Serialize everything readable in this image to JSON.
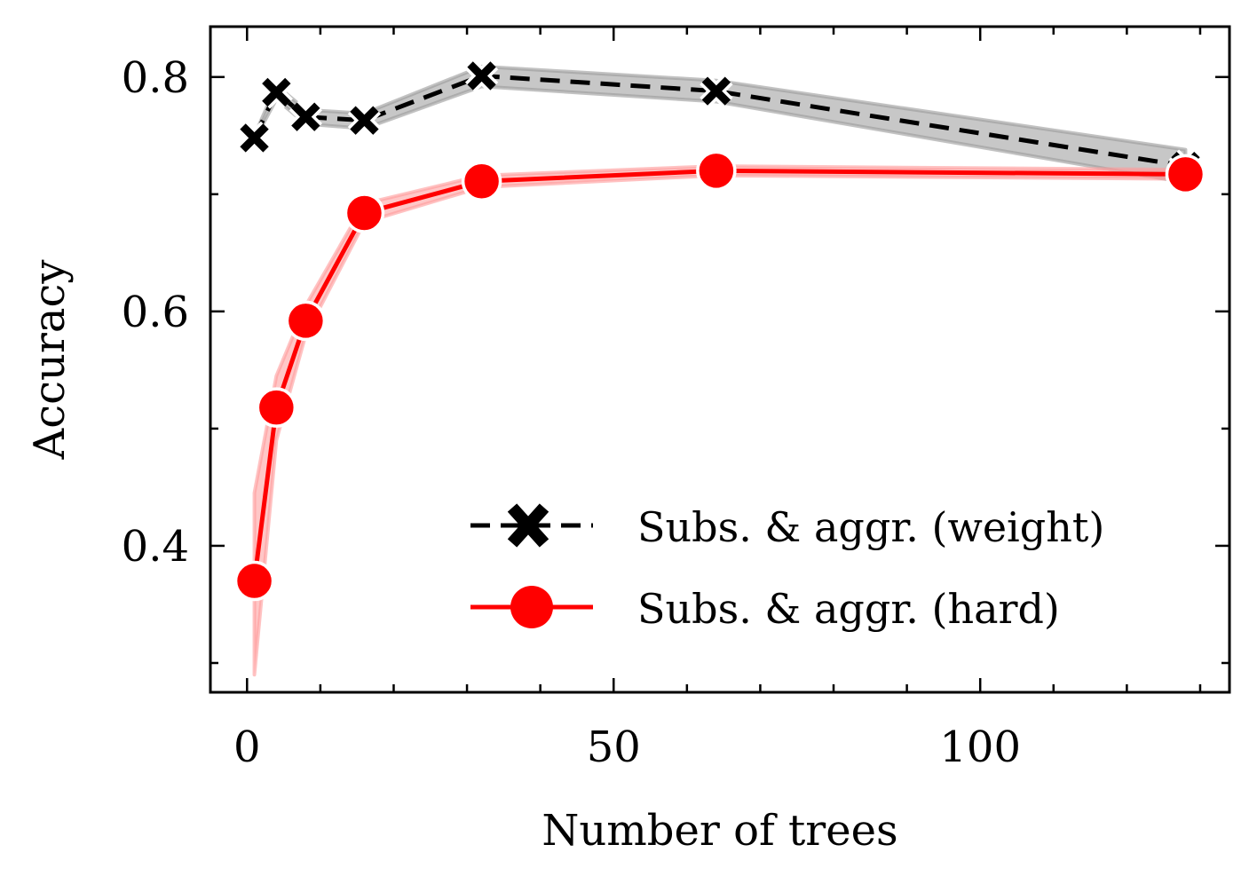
{
  "chart_data": {
    "type": "line",
    "title": "",
    "xlabel": "Number of trees",
    "ylabel": "Accuracy",
    "xlim": [
      -5,
      134
    ],
    "ylim": [
      0.275,
      0.843
    ],
    "xticks": [
      0,
      50,
      100
    ],
    "xtick_labels": [
      "0",
      "50",
      "100"
    ],
    "yticks": [
      0.4,
      0.6,
      0.8
    ],
    "ytick_labels": [
      "0.4",
      "0.6",
      "0.8"
    ],
    "grid": false,
    "legend_position": "lower-right",
    "x": [
      1,
      4,
      8,
      16,
      32,
      64,
      128
    ],
    "series": [
      {
        "name": "Subs. & aggr. (weight)",
        "color": "#000000",
        "band_color": "#999999",
        "line_style": "dashed",
        "marker": "x",
        "values": [
          0.748,
          0.787,
          0.766,
          0.763,
          0.801,
          0.788,
          0.724
        ],
        "lower": [
          0.746,
          0.781,
          0.76,
          0.756,
          0.792,
          0.779,
          0.71
        ],
        "upper": [
          0.75,
          0.793,
          0.772,
          0.769,
          0.809,
          0.797,
          0.738
        ]
      },
      {
        "name": "Subs. & aggr. (hard)",
        "color": "#ff0000",
        "band_color": "#ff9999",
        "line_style": "solid",
        "marker": "o",
        "values": [
          0.37,
          0.518,
          0.592,
          0.684,
          0.711,
          0.72,
          0.717
        ],
        "lower": [
          0.29,
          0.49,
          0.58,
          0.676,
          0.706,
          0.716,
          0.713
        ],
        "upper": [
          0.445,
          0.545,
          0.605,
          0.692,
          0.716,
          0.724,
          0.721
        ]
      }
    ]
  }
}
